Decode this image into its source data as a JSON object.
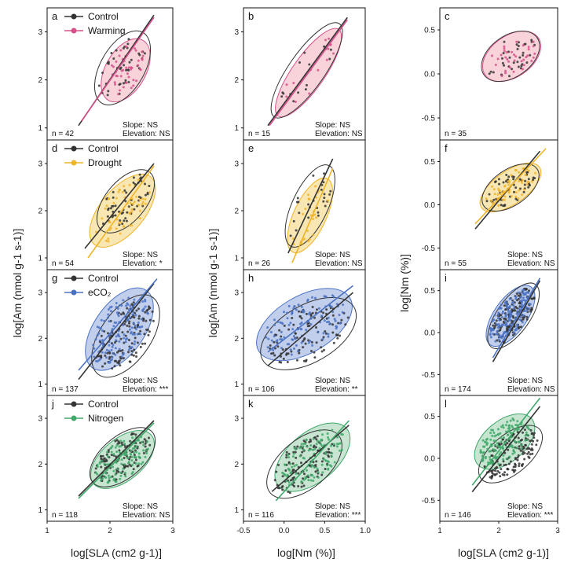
{
  "figure": {
    "ylabels": [
      "log[Am (nmol g-1 s-1)]",
      "log[Am (nmol g-1 s-1)]",
      "log[Nm (%)]"
    ],
    "xlabels": [
      "log[SLA (cm2 g-1)]",
      "log[Nm (%)]",
      "log[SLA (cm2 g-1)]"
    ]
  },
  "colors": {
    "control": "#333333",
    "warming": "#d64f8a",
    "warming_fill": "#f6c6cd",
    "drought": "#f0b429",
    "drought_fill": "#f7df9a",
    "eco2": "#4a72c4",
    "eco2_fill": "#aebfe6",
    "nitrogen": "#3fa86a",
    "nitrogen_fill": "#b5dcc1"
  },
  "rows": [
    {
      "treatment": "Warming",
      "legend": [
        "Control",
        "Warming"
      ],
      "color_key": "warming"
    },
    {
      "treatment": "Drought",
      "legend": [
        "Control",
        "Drought"
      ],
      "color_key": "drought"
    },
    {
      "treatment": "eCO2",
      "legend": [
        "Control",
        "eCO₂"
      ],
      "color_key": "eco2"
    },
    {
      "treatment": "Nitrogen",
      "legend": [
        "Control",
        "Nitrogen"
      ],
      "color_key": "nitrogen"
    }
  ],
  "panels": [
    {
      "letter": "a",
      "n": "n = 42",
      "slope": "Slope: NS",
      "elevation": "Elevation: NS",
      "x_ticks": [],
      "y_ticks": [
        "1",
        "2",
        "3"
      ]
    },
    {
      "letter": "b",
      "n": "n = 15",
      "slope": "Slope: NS",
      "elevation": "Elevation: NS",
      "x_ticks": [],
      "y_ticks": [
        "1",
        "2",
        "3"
      ]
    },
    {
      "letter": "c",
      "n": "n = 35",
      "slope": "",
      "elevation": "",
      "x_ticks": [],
      "y_ticks": [
        "-0.5",
        "0.0",
        "0.5"
      ]
    },
    {
      "letter": "d",
      "n": "n = 54",
      "slope": "Slope: NS",
      "elevation": "Elevation: *",
      "x_ticks": [],
      "y_ticks": [
        "1",
        "2",
        "3"
      ]
    },
    {
      "letter": "e",
      "n": "n = 26",
      "slope": "Slope: NS",
      "elevation": "Elevation: NS",
      "x_ticks": [],
      "y_ticks": [
        "1",
        "2",
        "3"
      ]
    },
    {
      "letter": "f",
      "n": "n = 55",
      "slope": "Slope: NS",
      "elevation": "Elevation: NS",
      "x_ticks": [],
      "y_ticks": [
        "-0.5",
        "0.0",
        "0.5"
      ]
    },
    {
      "letter": "g",
      "n": "n = 137",
      "slope": "Slope: NS",
      "elevation": "Elevation: ***",
      "x_ticks": [],
      "y_ticks": [
        "1",
        "2",
        "3"
      ]
    },
    {
      "letter": "h",
      "n": "n = 106",
      "slope": "Slope: NS",
      "elevation": "Elevation: **",
      "x_ticks": [],
      "y_ticks": [
        "1",
        "2",
        "3"
      ]
    },
    {
      "letter": "i",
      "n": "n = 174",
      "slope": "Slope: NS",
      "elevation": "Elevation: NS",
      "x_ticks": [],
      "y_ticks": [
        "-0.5",
        "0.0",
        "0.5"
      ]
    },
    {
      "letter": "j",
      "n": "n = 118",
      "slope": "Slope: NS",
      "elevation": "Elevation: NS",
      "x_ticks": [
        "1",
        "2",
        "3"
      ],
      "y_ticks": [
        "1",
        "2",
        "3"
      ]
    },
    {
      "letter": "k",
      "n": "n = 116",
      "slope": "Slope: NS",
      "elevation": "Elevation: ***",
      "x_ticks": [
        "-0.5",
        "0.0",
        "0.5",
        "1.0"
      ],
      "y_ticks": [
        "1",
        "2",
        "3"
      ]
    },
    {
      "letter": "l",
      "n": "n = 146",
      "slope": "Slope: NS",
      "elevation": "Elevation: ***",
      "x_ticks": [
        "1",
        "2",
        "3"
      ],
      "y_ticks": [
        "-0.5",
        "0.0",
        "0.5"
      ]
    }
  ],
  "chart_data": [
    {
      "type": "scatter",
      "panel": "a",
      "x_var": "log SLA",
      "y_var": "log Am",
      "xlim": [
        1,
        3
      ],
      "ylim": [
        0.75,
        3.5
      ],
      "series": [
        {
          "name": "Control",
          "fit": [
            [
              1.5,
              1.05
            ],
            [
              2.7,
              3.35
            ]
          ]
        },
        {
          "name": "Warming",
          "fit": [
            [
              1.55,
              1.15
            ],
            [
              2.7,
              3.3
            ]
          ]
        }
      ],
      "ellipses": [
        {
          "series": "Control",
          "center": [
            2.2,
            2.25
          ],
          "half_axes": [
            0.65,
            0.35
          ],
          "angle_deg": 60
        },
        {
          "series": "Warming",
          "center": [
            2.25,
            2.2
          ],
          "half_axes": [
            0.55,
            0.32
          ],
          "angle_deg": 60
        }
      ]
    },
    {
      "type": "scatter",
      "panel": "b",
      "x_var": "log Nm",
      "y_var": "log Am",
      "xlim": [
        -0.5,
        1
      ],
      "ylim": [
        0.75,
        3.5
      ],
      "series": [
        {
          "name": "Control",
          "fit": [
            [
              -0.2,
              1.05
            ],
            [
              0.78,
              3.3
            ]
          ]
        },
        {
          "name": "Warming",
          "fit": [
            [
              -0.18,
              1.05
            ],
            [
              0.78,
              3.25
            ]
          ]
        }
      ],
      "ellipses": [
        {
          "series": "Control",
          "center": [
            0.28,
            2.2
          ],
          "half_axes": [
            0.7,
            0.22
          ],
          "angle_deg": 55
        },
        {
          "series": "Warming",
          "center": [
            0.3,
            2.15
          ],
          "half_axes": [
            0.65,
            0.2
          ],
          "angle_deg": 55
        }
      ]
    },
    {
      "type": "scatter",
      "panel": "c",
      "x_var": "log SLA",
      "y_var": "log Nm",
      "xlim": [
        1,
        3
      ],
      "ylim": [
        -0.75,
        0.75
      ],
      "series": [
        {
          "name": "Control",
          "fit": []
        },
        {
          "name": "Warming",
          "fit": []
        }
      ],
      "ellipses": [
        {
          "series": "Control",
          "center": [
            2.2,
            0.2
          ],
          "half_axes": [
            0.55,
            0.35
          ],
          "angle_deg": 35
        },
        {
          "series": "Warming",
          "center": [
            2.22,
            0.2
          ],
          "half_axes": [
            0.55,
            0.35
          ],
          "angle_deg": 35
        }
      ]
    },
    {
      "type": "scatter",
      "panel": "d",
      "x_var": "log SLA",
      "y_var": "log Am",
      "xlim": [
        1,
        3
      ],
      "ylim": [
        0.75,
        3.5
      ],
      "series": [
        {
          "name": "Control",
          "fit": [
            [
              1.6,
              1.2
            ],
            [
              2.7,
              3.0
            ]
          ]
        },
        {
          "name": "Drought",
          "fit": [
            [
              1.65,
              1.0
            ],
            [
              2.7,
              2.95
            ]
          ]
        }
      ],
      "ellipses": [
        {
          "series": "Control",
          "center": [
            2.25,
            2.2
          ],
          "half_axes": [
            0.6,
            0.32
          ],
          "angle_deg": 50
        },
        {
          "series": "Drought",
          "center": [
            2.2,
            2.0
          ],
          "half_axes": [
            0.7,
            0.35
          ],
          "angle_deg": 50
        }
      ]
    },
    {
      "type": "scatter",
      "panel": "e",
      "x_var": "log Nm",
      "y_var": "log Am",
      "xlim": [
        -0.5,
        1
      ],
      "ylim": [
        0.75,
        3.5
      ],
      "series": [
        {
          "name": "Control",
          "fit": [
            [
              0.05,
              1.1
            ],
            [
              0.6,
              3.1
            ]
          ]
        },
        {
          "name": "Drought",
          "fit": [
            [
              0.1,
              0.9
            ],
            [
              0.6,
              2.9
            ]
          ]
        }
      ],
      "ellipses": [
        {
          "series": "Control",
          "center": [
            0.32,
            2.1
          ],
          "half_axes": [
            0.55,
            0.22
          ],
          "angle_deg": 65
        },
        {
          "series": "Drought",
          "center": [
            0.32,
            1.9
          ],
          "half_axes": [
            0.5,
            0.2
          ],
          "angle_deg": 65
        }
      ]
    },
    {
      "type": "scatter",
      "panel": "f",
      "x_var": "log SLA",
      "y_var": "log Nm",
      "xlim": [
        1,
        3
      ],
      "ylim": [
        -0.75,
        0.75
      ],
      "series": [
        {
          "name": "Control",
          "fit": [
            [
              1.6,
              -0.28
            ],
            [
              2.7,
              0.62
            ]
          ]
        },
        {
          "name": "Drought",
          "fit": [
            [
              1.6,
              -0.22
            ],
            [
              2.8,
              0.65
            ]
          ]
        }
      ],
      "ellipses": [
        {
          "series": "Control",
          "center": [
            2.2,
            0.2
          ],
          "half_axes": [
            0.55,
            0.3
          ],
          "angle_deg": 35
        },
        {
          "series": "Drought",
          "center": [
            2.2,
            0.2
          ],
          "half_axes": [
            0.6,
            0.28
          ],
          "angle_deg": 35
        }
      ]
    },
    {
      "type": "scatter",
      "panel": "g",
      "x_var": "log SLA",
      "y_var": "log Am",
      "xlim": [
        1,
        3
      ],
      "ylim": [
        0.75,
        3.5
      ],
      "series": [
        {
          "name": "Control",
          "fit": [
            [
              1.5,
              1.1
            ],
            [
              2.7,
              3.2
            ]
          ]
        },
        {
          "name": "eCO2",
          "fit": [
            [
              1.5,
              1.3
            ],
            [
              2.75,
              3.3
            ]
          ]
        }
      ],
      "ellipses": [
        {
          "series": "Control",
          "center": [
            2.25,
            2.05
          ],
          "half_axes": [
            0.75,
            0.4
          ],
          "angle_deg": 55
        },
        {
          "series": "eCO2",
          "center": [
            2.15,
            2.2
          ],
          "half_axes": [
            0.75,
            0.4
          ],
          "angle_deg": 55
        }
      ]
    },
    {
      "type": "scatter",
      "panel": "h",
      "x_var": "log Nm",
      "y_var": "log Am",
      "xlim": [
        -0.5,
        1
      ],
      "ylim": [
        0.75,
        3.5
      ],
      "series": [
        {
          "name": "Control",
          "fit": [
            [
              -0.2,
              1.4
            ],
            [
              0.85,
              3.0
            ]
          ]
        },
        {
          "name": "eCO2",
          "fit": [
            [
              -0.2,
              1.7
            ],
            [
              0.85,
              3.15
            ]
          ]
        }
      ],
      "ellipses": [
        {
          "series": "Control",
          "center": [
            0.3,
            2.1
          ],
          "half_axes": [
            0.65,
            0.35
          ],
          "angle_deg": 30
        },
        {
          "series": "eCO2",
          "center": [
            0.25,
            2.3
          ],
          "half_axes": [
            0.65,
            0.35
          ],
          "angle_deg": 30
        }
      ]
    },
    {
      "type": "scatter",
      "panel": "i",
      "x_var": "log SLA",
      "y_var": "log Nm",
      "xlim": [
        1,
        3
      ],
      "ylim": [
        -0.75,
        0.75
      ],
      "series": [
        {
          "name": "Control",
          "fit": [
            [
              1.9,
              -0.35
            ],
            [
              2.7,
              0.62
            ]
          ]
        },
        {
          "name": "eCO2",
          "fit": [
            [
              1.9,
              -0.3
            ],
            [
              2.7,
              0.65
            ]
          ]
        }
      ],
      "ellipses": [
        {
          "series": "Control",
          "center": [
            2.25,
            0.2
          ],
          "half_axes": [
            0.65,
            0.28
          ],
          "angle_deg": 55
        },
        {
          "series": "eCO2",
          "center": [
            2.2,
            0.2
          ],
          "half_axes": [
            0.6,
            0.28
          ],
          "angle_deg": 55
        }
      ]
    },
    {
      "type": "scatter",
      "panel": "j",
      "x_var": "log SLA",
      "y_var": "log Am",
      "xlim": [
        1,
        3
      ],
      "ylim": [
        0.75,
        3.5
      ],
      "series": [
        {
          "name": "Control",
          "fit": [
            [
              1.5,
              1.3
            ],
            [
              2.7,
              2.95
            ]
          ]
        },
        {
          "name": "Nitrogen",
          "fit": [
            [
              1.5,
              1.25
            ],
            [
              2.7,
              2.9
            ]
          ]
        }
      ],
      "ellipses": [
        {
          "series": "Control",
          "center": [
            2.2,
            2.15
          ],
          "half_axes": [
            0.62,
            0.33
          ],
          "angle_deg": 40
        },
        {
          "series": "Nitrogen",
          "center": [
            2.2,
            2.1
          ],
          "half_axes": [
            0.6,
            0.33
          ],
          "angle_deg": 40
        }
      ]
    },
    {
      "type": "scatter",
      "panel": "k",
      "x_var": "log Nm",
      "y_var": "log Am",
      "xlim": [
        -0.5,
        1
      ],
      "ylim": [
        0.75,
        3.5
      ],
      "series": [
        {
          "name": "Control",
          "fit": [
            [
              -0.15,
              1.4
            ],
            [
              0.8,
              2.85
            ]
          ]
        },
        {
          "name": "Nitrogen",
          "fit": [
            [
              -0.1,
              1.2
            ],
            [
              0.8,
              2.95
            ]
          ]
        }
      ],
      "ellipses": [
        {
          "series": "Control",
          "center": [
            0.25,
            2.0
          ],
          "half_axes": [
            0.55,
            0.3
          ],
          "angle_deg": 40
        },
        {
          "series": "Nitrogen",
          "center": [
            0.35,
            2.15
          ],
          "half_axes": [
            0.55,
            0.3
          ],
          "angle_deg": 40
        }
      ]
    },
    {
      "type": "scatter",
      "panel": "l",
      "x_var": "log SLA",
      "y_var": "log Nm",
      "xlim": [
        1,
        3
      ],
      "ylim": [
        -0.75,
        0.75
      ],
      "series": [
        {
          "name": "Control",
          "fit": [
            [
              1.55,
              -0.4
            ],
            [
              2.7,
              0.62
            ]
          ]
        },
        {
          "name": "Nitrogen",
          "fit": [
            [
              1.55,
              -0.32
            ],
            [
              2.7,
              0.72
            ]
          ]
        }
      ],
      "ellipses": [
        {
          "series": "Control",
          "center": [
            2.2,
            0.05
          ],
          "half_axes": [
            0.65,
            0.33
          ],
          "angle_deg": 40
        },
        {
          "series": "Nitrogen",
          "center": [
            2.1,
            0.2
          ],
          "half_axes": [
            0.6,
            0.35
          ],
          "angle_deg": 40
        }
      ]
    }
  ]
}
